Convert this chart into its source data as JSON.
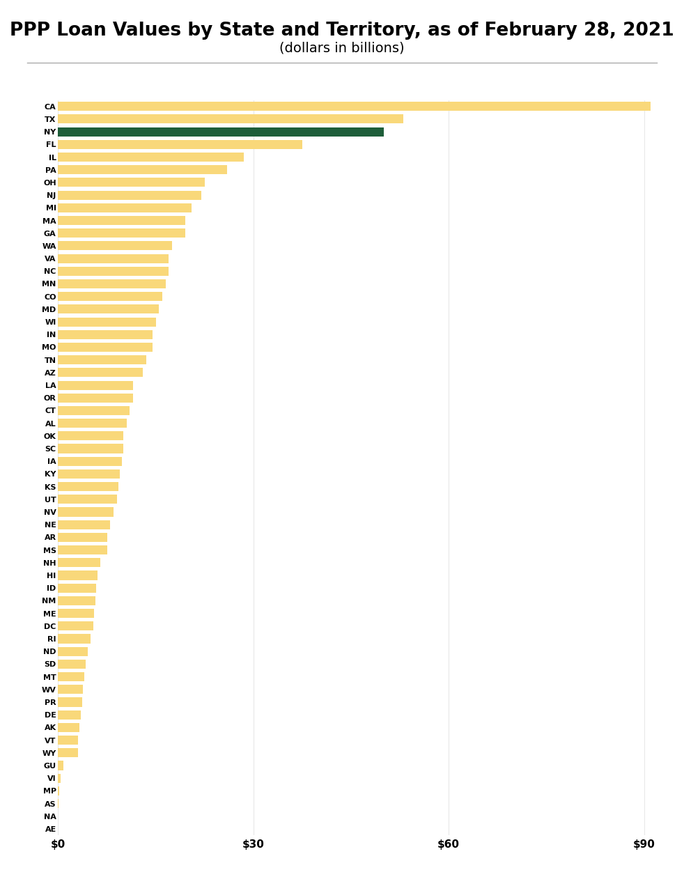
{
  "title": "PPP Loan Values by State and Territory, as of February 28, 2021",
  "subtitle": "(dollars in billions)",
  "states": [
    "CA",
    "TX",
    "NY",
    "FL",
    "IL",
    "PA",
    "OH",
    "NJ",
    "MI",
    "MA",
    "GA",
    "WA",
    "VA",
    "NC",
    "MN",
    "CO",
    "MD",
    "WI",
    "IN",
    "MO",
    "TN",
    "AZ",
    "LA",
    "OR",
    "CT",
    "AL",
    "OK",
    "SC",
    "IA",
    "KY",
    "KS",
    "UT",
    "NV",
    "NE",
    "AR",
    "MS",
    "NH",
    "HI",
    "ID",
    "NM",
    "ME",
    "DC",
    "RI",
    "ND",
    "SD",
    "MT",
    "WV",
    "PR",
    "DE",
    "AK",
    "VT",
    "WY",
    "GU",
    "VI",
    "MP",
    "AS",
    "NA",
    "AE"
  ],
  "values": [
    91.0,
    53.0,
    50.0,
    37.5,
    28.5,
    26.0,
    22.5,
    22.0,
    20.5,
    19.5,
    19.5,
    17.5,
    17.0,
    17.0,
    16.5,
    16.0,
    15.5,
    15.0,
    14.5,
    14.5,
    13.5,
    13.0,
    11.5,
    11.5,
    11.0,
    10.5,
    10.0,
    10.0,
    9.8,
    9.5,
    9.3,
    9.0,
    8.5,
    8.0,
    7.5,
    7.5,
    6.5,
    6.0,
    5.8,
    5.7,
    5.5,
    5.4,
    5.0,
    4.5,
    4.2,
    4.0,
    3.8,
    3.7,
    3.5,
    3.3,
    3.1,
    3.0,
    0.8,
    0.4,
    0.2,
    0.1,
    0.0,
    0.0
  ],
  "ny_color": "#1e5e3a",
  "default_color": "#f9d87a",
  "background_color": "#ffffff",
  "xlim_max": 93,
  "xtick_labels": [
    "$0",
    "$30",
    "$60",
    "$90"
  ],
  "xtick_values": [
    0,
    30,
    60,
    90
  ],
  "grid_color": "#e8e8e8",
  "title_fontsize": 19,
  "subtitle_fontsize": 14,
  "label_fontsize": 8,
  "tick_fontsize": 11,
  "bar_height": 0.72
}
